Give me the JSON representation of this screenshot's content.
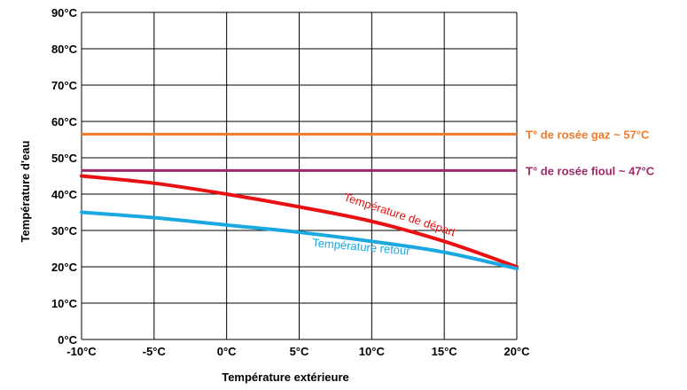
{
  "chart_data": {
    "type": "line",
    "title": "",
    "xlabel": "Température  extérieure",
    "ylabel": "Température  d'eau",
    "xlim": [
      -10,
      20
    ],
    "ylim": [
      0,
      90
    ],
    "grid": true,
    "x_ticks": [
      -10,
      -5,
      0,
      5,
      10,
      15,
      20
    ],
    "x_tick_labels": [
      "-10°C",
      "-5°C",
      "0°C",
      "5°C",
      "10°C",
      "15°C",
      "20°C"
    ],
    "y_ticks": [
      0,
      10,
      20,
      30,
      40,
      50,
      60,
      70,
      80,
      90
    ],
    "y_tick_labels": [
      "0°C",
      "10°C",
      "20°C",
      "30°C",
      "40°C",
      "50°C",
      "60°C",
      "70°C",
      "80°C",
      "90°C"
    ],
    "series": [
      {
        "name": "Température  de  départ",
        "color": "#e81010",
        "x": [
          -10,
          -5,
          0,
          5,
          10,
          15,
          20
        ],
        "y": [
          45,
          43,
          40,
          36.5,
          32.5,
          27,
          20
        ]
      },
      {
        "name": "Température  retour",
        "color": "#19a8e0",
        "x": [
          -10,
          -5,
          0,
          5,
          10,
          15,
          20
        ],
        "y": [
          35,
          33.5,
          31.5,
          29.5,
          27,
          24,
          19.5
        ]
      }
    ],
    "reference_lines": [
      {
        "label": "T° de rosée  gaz  ~ 57°C",
        "y": 56.5,
        "color": "#f07a28"
      },
      {
        "label": "T° de rosée  fioul  ~ 47°C",
        "y": 46.5,
        "color": "#9b2a6a"
      }
    ]
  }
}
